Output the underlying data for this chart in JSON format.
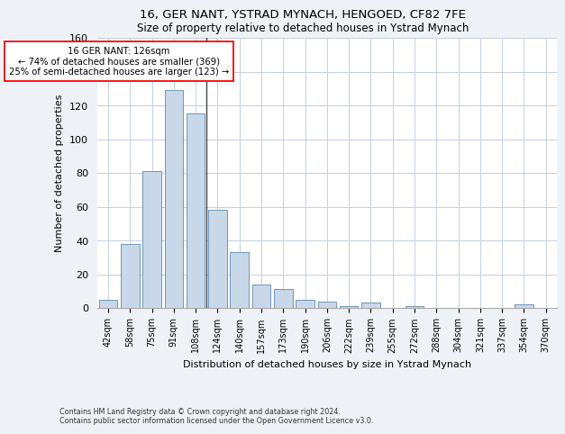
{
  "title": "16, GER NANT, YSTRAD MYNACH, HENGOED, CF82 7FE",
  "subtitle": "Size of property relative to detached houses in Ystrad Mynach",
  "xlabel": "Distribution of detached houses by size in Ystrad Mynach",
  "ylabel": "Number of detached properties",
  "categories": [
    "42sqm",
    "58sqm",
    "75sqm",
    "91sqm",
    "108sqm",
    "124sqm",
    "140sqm",
    "157sqm",
    "173sqm",
    "190sqm",
    "206sqm",
    "222sqm",
    "239sqm",
    "255sqm",
    "272sqm",
    "288sqm",
    "304sqm",
    "321sqm",
    "337sqm",
    "354sqm",
    "370sqm"
  ],
  "values": [
    5,
    38,
    81,
    129,
    115,
    58,
    33,
    14,
    11,
    5,
    4,
    1,
    3,
    0,
    1,
    0,
    0,
    0,
    0,
    2,
    0
  ],
  "bar_color": "#c8d8e8",
  "bar_edge_color": "#5a8ab0",
  "vline_x_index": 4.5,
  "annotation_text1": "16 GER NANT: 126sqm",
  "annotation_text2": "← 74% of detached houses are smaller (369)",
  "annotation_text3": "25% of semi-detached houses are larger (123) →",
  "ylim": [
    0,
    160
  ],
  "yticks": [
    0,
    20,
    40,
    60,
    80,
    100,
    120,
    140,
    160
  ],
  "footer1": "Contains HM Land Registry data © Crown copyright and database right 2024.",
  "footer2": "Contains public sector information licensed under the Open Government Licence v3.0.",
  "background_color": "#eef2f7",
  "plot_background_color": "#ffffff",
  "grid_color": "#c5cfe0"
}
